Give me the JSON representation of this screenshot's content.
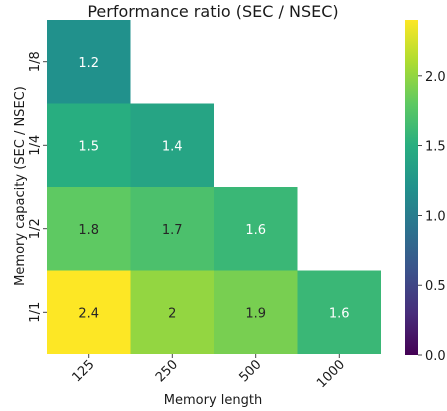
{
  "chart_data": {
    "type": "heatmap",
    "title": "Performance ratio (SEC / NSEC)",
    "xlabel": "Memory length",
    "ylabel": "Memory capacity (SEC / NSEC)",
    "x_categories": [
      "125",
      "250",
      "500",
      "1000"
    ],
    "y_categories": [
      "1/8",
      "1/4",
      "1/2",
      "1/1"
    ],
    "cells": [
      {
        "x": "125",
        "y": "1/8",
        "value": 1.2,
        "label": "1.2"
      },
      {
        "x": "125",
        "y": "1/4",
        "value": 1.5,
        "label": "1.5"
      },
      {
        "x": "250",
        "y": "1/4",
        "value": 1.4,
        "label": "1.4"
      },
      {
        "x": "125",
        "y": "1/2",
        "value": 1.8,
        "label": "1.8"
      },
      {
        "x": "250",
        "y": "1/2",
        "value": 1.7,
        "label": "1.7"
      },
      {
        "x": "500",
        "y": "1/2",
        "value": 1.6,
        "label": "1.6"
      },
      {
        "x": "125",
        "y": "1/1",
        "value": 2.4,
        "label": "2.4"
      },
      {
        "x": "250",
        "y": "1/1",
        "value": 2.0,
        "label": "2"
      },
      {
        "x": "500",
        "y": "1/1",
        "value": 1.9,
        "label": "1.9"
      },
      {
        "x": "1000",
        "y": "1/1",
        "value": 1.6,
        "label": "1.6"
      }
    ],
    "colorbar": {
      "colormap": "viridis",
      "range": [
        0.0,
        2.4
      ],
      "ticks": [
        {
          "value": 0.0,
          "label": "0.0"
        },
        {
          "value": 0.5,
          "label": "0.5"
        },
        {
          "value": 1.0,
          "label": "1.0"
        },
        {
          "value": 1.5,
          "label": "1.5"
        },
        {
          "value": 2.0,
          "label": "2.0"
        }
      ]
    }
  }
}
